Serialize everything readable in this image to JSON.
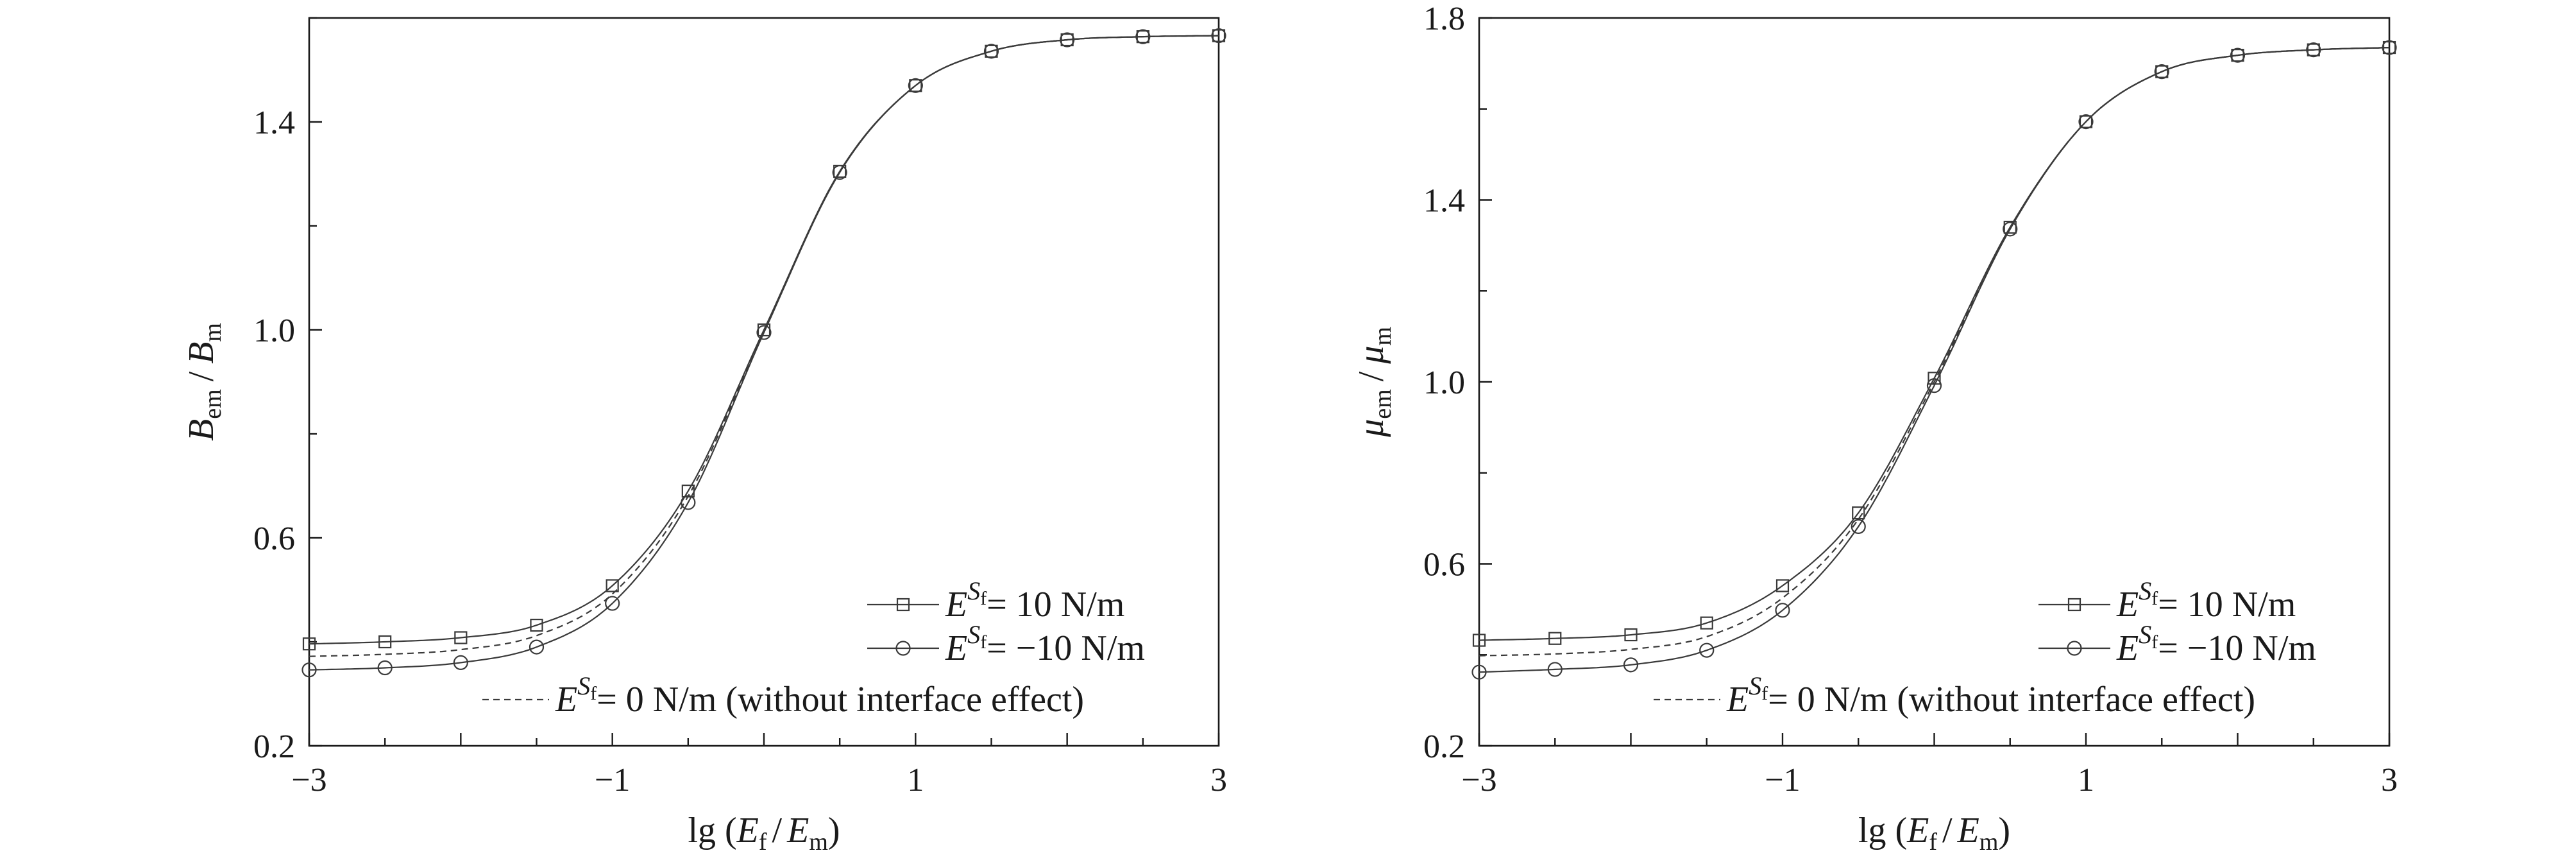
{
  "chart_data": [
    {
      "type": "line",
      "xlabel": "lg (E_f / E_m)",
      "ylabel": "B_em / B_m",
      "xlim": [
        -3,
        3
      ],
      "ylim": [
        0.2,
        1.6
      ],
      "xticks": [
        -3,
        -1,
        1,
        3
      ],
      "xtick_labels": [
        "−3",
        "−1",
        "1",
        "3"
      ],
      "yticks": [
        0.2,
        0.6,
        1.0,
        1.4
      ],
      "ytick_labels": [
        "0.2",
        "0.6",
        "1.0",
        "1.4"
      ],
      "grid": false,
      "legend_position": "bottom-right",
      "x": [
        -3,
        -2.5,
        -2,
        -1.5,
        -1,
        -0.5,
        0,
        0.5,
        1,
        1.5,
        2,
        2.5,
        3
      ],
      "series": [
        {
          "name": "E^Sf = 10 N/m",
          "marker": "square",
          "line": "solid",
          "values": [
            0.396,
            0.4,
            0.408,
            0.432,
            0.508,
            0.69,
            1.0,
            1.305,
            1.47,
            1.536,
            1.558,
            1.564,
            1.566
          ]
        },
        {
          "name": "E^Sf = −10 N/m",
          "marker": "circle",
          "line": "solid",
          "values": [
            0.346,
            0.35,
            0.36,
            0.39,
            0.474,
            0.668,
            0.995,
            1.303,
            1.47,
            1.536,
            1.558,
            1.564,
            1.566
          ]
        },
        {
          "name": "E^Sf = 0 N/m (without interface effect)",
          "marker": "none",
          "line": "dashed",
          "values": [
            0.372,
            0.376,
            0.385,
            0.412,
            0.492,
            0.68,
            0.998,
            1.304,
            1.47,
            1.536,
            1.558,
            1.564,
            1.566
          ]
        }
      ]
    },
    {
      "type": "line",
      "xlabel": "lg (E_f / E_m)",
      "ylabel": "μ_em / μ_m",
      "xlim": [
        -3,
        3
      ],
      "ylim": [
        0.2,
        1.8
      ],
      "xticks": [
        -3,
        -1,
        1,
        3
      ],
      "xtick_labels": [
        "−3",
        "−1",
        "1",
        "3"
      ],
      "yticks": [
        0.2,
        0.6,
        1.0,
        1.4,
        1.8
      ],
      "ytick_labels": [
        "0.2",
        "0.6",
        "1.0",
        "1.4",
        "1.8"
      ],
      "grid": false,
      "legend_position": "bottom-right",
      "x": [
        -3,
        -2.5,
        -2,
        -1.5,
        -1,
        -0.5,
        0,
        0.5,
        1,
        1.5,
        2,
        2.5,
        3
      ],
      "series": [
        {
          "name": "E^Sf = 10 N/m",
          "marker": "square",
          "line": "solid",
          "values": [
            0.432,
            0.436,
            0.444,
            0.47,
            0.552,
            0.712,
            1.008,
            1.34,
            1.572,
            1.682,
            1.718,
            1.73,
            1.735
          ]
        },
        {
          "name": "E^Sf = −10 N/m",
          "marker": "circle",
          "line": "solid",
          "values": [
            0.362,
            0.368,
            0.378,
            0.41,
            0.498,
            0.682,
            0.992,
            1.336,
            1.572,
            1.682,
            1.718,
            1.73,
            1.735
          ]
        },
        {
          "name": "E^Sf = 0 N/m (without interface effect)",
          "marker": "none",
          "line": "dashed",
          "values": [
            0.398,
            0.402,
            0.412,
            0.44,
            0.525,
            0.698,
            1.0,
            1.338,
            1.572,
            1.682,
            1.718,
            1.73,
            1.735
          ]
        }
      ]
    }
  ],
  "legend_labels": {
    "pos": "E^Sf = 10 N/m",
    "neg": "E^Sf = −10 N/m",
    "zero": "E^Sf = 0 N/m (without interface effect)"
  },
  "text_parts": {
    "E": "E",
    "S": "S",
    "f": "f",
    "m": "m",
    "em": "em",
    "B": "B",
    "mu": "μ",
    "slash": "/",
    "lg": "lg (",
    "close_paren": ")",
    "pos_tail": "= 10 N/m",
    "neg_tail": "= −10 N/m",
    "zero_tail": "= 0 N/m (without interface effect)"
  },
  "colors": {
    "line": "#3a3a3a",
    "marker": "#3a3a3a",
    "axis": "#1a1a1a",
    "background": "#ffffff"
  }
}
